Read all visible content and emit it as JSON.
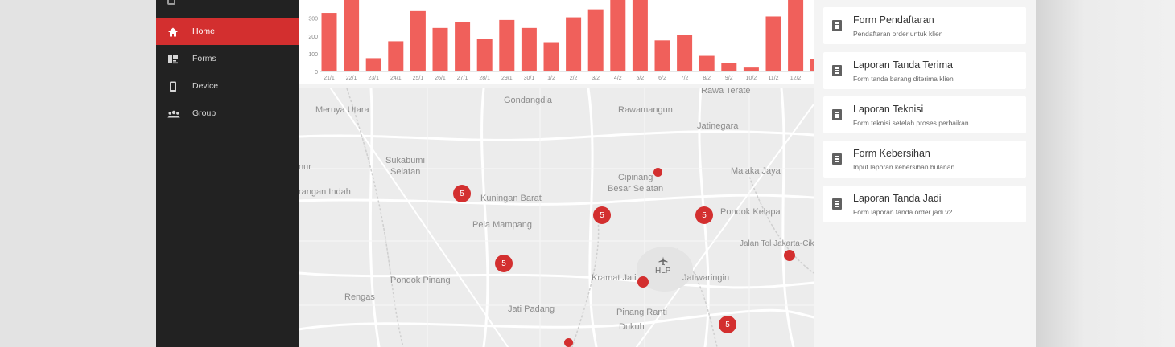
{
  "sidebar": {
    "items": [
      {
        "label": "Home",
        "icon": "home-icon",
        "active": true
      },
      {
        "label": "Forms",
        "icon": "forms-icon",
        "active": false
      },
      {
        "label": "Device",
        "icon": "device-icon",
        "active": false
      },
      {
        "label": "Group",
        "icon": "group-icon",
        "active": false
      }
    ]
  },
  "chart_data": {
    "type": "bar",
    "categories": [
      "21/1",
      "22/1",
      "23/1",
      "24/1",
      "25/1",
      "26/1",
      "27/1",
      "28/1",
      "29/1",
      "30/1",
      "1/2",
      "2/2",
      "3/2",
      "4/2",
      "5/2",
      "6/2",
      "7/2",
      "8/2",
      "9/2",
      "10/2",
      "11/2",
      "12/2"
    ],
    "values": [
      330,
      420,
      75,
      170,
      340,
      245,
      280,
      185,
      290,
      245,
      165,
      305,
      350,
      420,
      420,
      175,
      205,
      88,
      48,
      22,
      310,
      420
    ],
    "y_ticks": [
      0,
      100,
      200,
      300
    ],
    "ylim": [
      0,
      380
    ],
    "bar_color": "#f0605b"
  },
  "map": {
    "labels": [
      "Meruya Utara",
      "Gondangdia",
      "Rawamangun",
      "Rawa Terate",
      "Jatinegara",
      "Sukabumi",
      "Selatan",
      "nur",
      "Cipinang",
      "Besar Selatan",
      "Malaka Jaya",
      "rangan Indah",
      "Kuningan Barat",
      "Pela Mampang",
      "Pondok Kelapa",
      "Jalan Tol Jakarta-Cik",
      "Pondok Pinang",
      "Kramat Jati",
      "HLP",
      "Jatiwaringin",
      "Rengas",
      "Jati Padang",
      "Pinang Ranti",
      "Dukuh"
    ],
    "clusters": [
      "5",
      "5",
      "5",
      "5",
      "5"
    ]
  },
  "forms": [
    {
      "title": "Form Pendaftaran",
      "subtitle": "Pendaftaran order untuk klien"
    },
    {
      "title": "Laporan Tanda Terima",
      "subtitle": "Form tanda barang diterima klien"
    },
    {
      "title": "Laporan Teknisi",
      "subtitle": "Form teknisi setelah proses perbaikan"
    },
    {
      "title": "Form Kebersihan",
      "subtitle": "Input laporan kebersihan bulanan"
    },
    {
      "title": "Laporan Tanda Jadi",
      "subtitle": "Form laporan tanda order jadi v2"
    }
  ],
  "colors": {
    "accent": "#d32f2f",
    "sidebar_bg": "#222222",
    "bar": "#f0605b"
  }
}
